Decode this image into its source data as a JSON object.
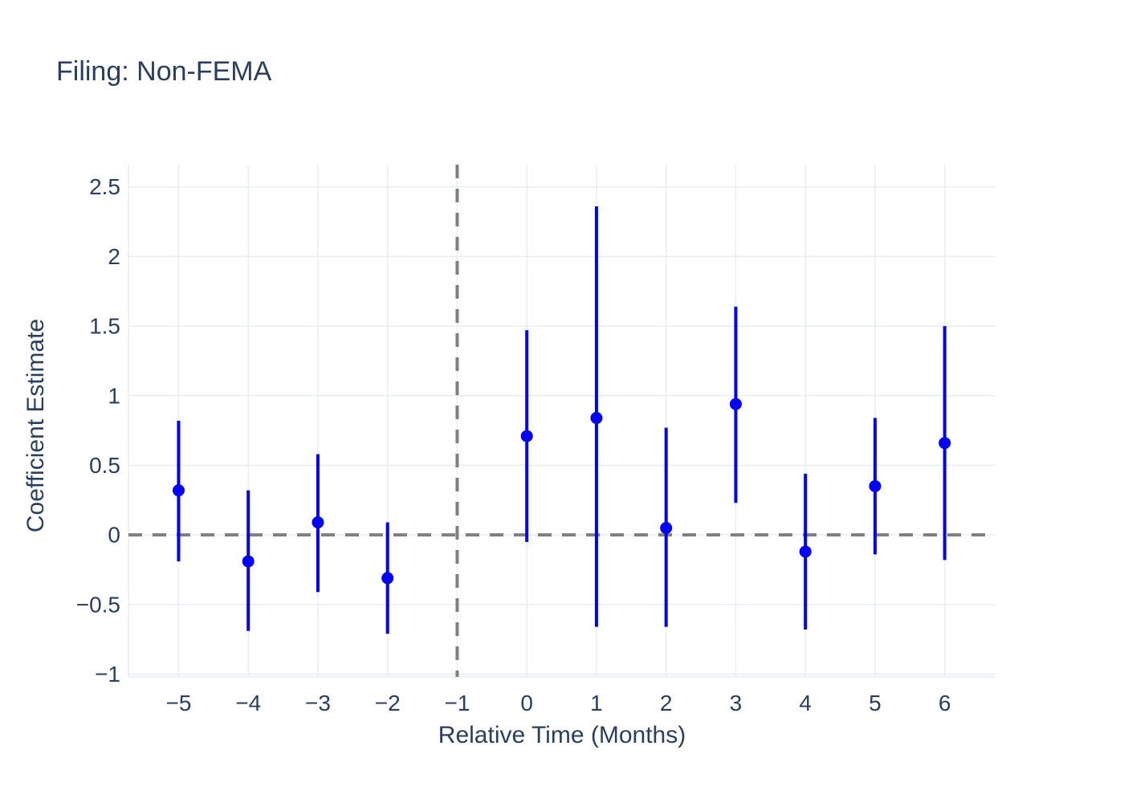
{
  "chart_data": {
    "type": "scatter",
    "title": "Filing: Non-FEMA",
    "xlabel": "Relative Time (Months)",
    "ylabel": "Coefficient Estimate",
    "points": [
      {
        "x": -5,
        "estimate": 0.32,
        "ci_low": -0.19,
        "ci_high": 0.82
      },
      {
        "x": -4,
        "estimate": -0.19,
        "ci_low": -0.69,
        "ci_high": 0.32
      },
      {
        "x": -3,
        "estimate": 0.09,
        "ci_low": -0.41,
        "ci_high": 0.58
      },
      {
        "x": -2,
        "estimate": -0.31,
        "ci_low": -0.71,
        "ci_high": 0.09
      },
      {
        "x": 0,
        "estimate": 0.71,
        "ci_low": -0.05,
        "ci_high": 1.47
      },
      {
        "x": 1,
        "estimate": 0.84,
        "ci_low": -0.66,
        "ci_high": 2.36
      },
      {
        "x": 2,
        "estimate": 0.05,
        "ci_low": -0.66,
        "ci_high": 0.77
      },
      {
        "x": 3,
        "estimate": 0.94,
        "ci_low": 0.23,
        "ci_high": 1.64
      },
      {
        "x": 4,
        "estimate": -0.12,
        "ci_low": -0.68,
        "ci_high": 0.44
      },
      {
        "x": 5,
        "estimate": 0.35,
        "ci_low": -0.14,
        "ci_high": 0.84
      },
      {
        "x": 6,
        "estimate": 0.66,
        "ci_low": -0.18,
        "ci_high": 1.5
      }
    ],
    "x_ticks": [
      {
        "value": -5,
        "label": "−5"
      },
      {
        "value": -4,
        "label": "−4"
      },
      {
        "value": -3,
        "label": "−3"
      },
      {
        "value": -2,
        "label": "−2"
      },
      {
        "value": -1,
        "label": "−1"
      },
      {
        "value": 0,
        "label": "0"
      },
      {
        "value": 1,
        "label": "1"
      },
      {
        "value": 2,
        "label": "2"
      },
      {
        "value": 3,
        "label": "3"
      },
      {
        "value": 4,
        "label": "4"
      },
      {
        "value": 5,
        "label": "5"
      },
      {
        "value": 6,
        "label": "6"
      }
    ],
    "y_ticks": [
      {
        "value": -1,
        "label": "−1"
      },
      {
        "value": -0.5,
        "label": "−0.5"
      },
      {
        "value": 0,
        "label": "0"
      },
      {
        "value": 0.5,
        "label": "0.5"
      },
      {
        "value": 1,
        "label": "1"
      },
      {
        "value": 1.5,
        "label": "1.5"
      },
      {
        "value": 2,
        "label": "2"
      },
      {
        "value": 2.5,
        "label": "2.5"
      }
    ],
    "xlim": [
      -5.72,
      6.73
    ],
    "ylim": [
      -1.02,
      2.66
    ],
    "grid": true,
    "legend": "none",
    "reference_line_x": -1,
    "zero_line_y": 0,
    "colors": {
      "marker": "#0000ff",
      "error_bar": "#0000ff",
      "reference_line": "#7f7f7f",
      "grid": "#e8ecf6",
      "text": "#2a3f5f",
      "background": "#ffffff"
    }
  }
}
